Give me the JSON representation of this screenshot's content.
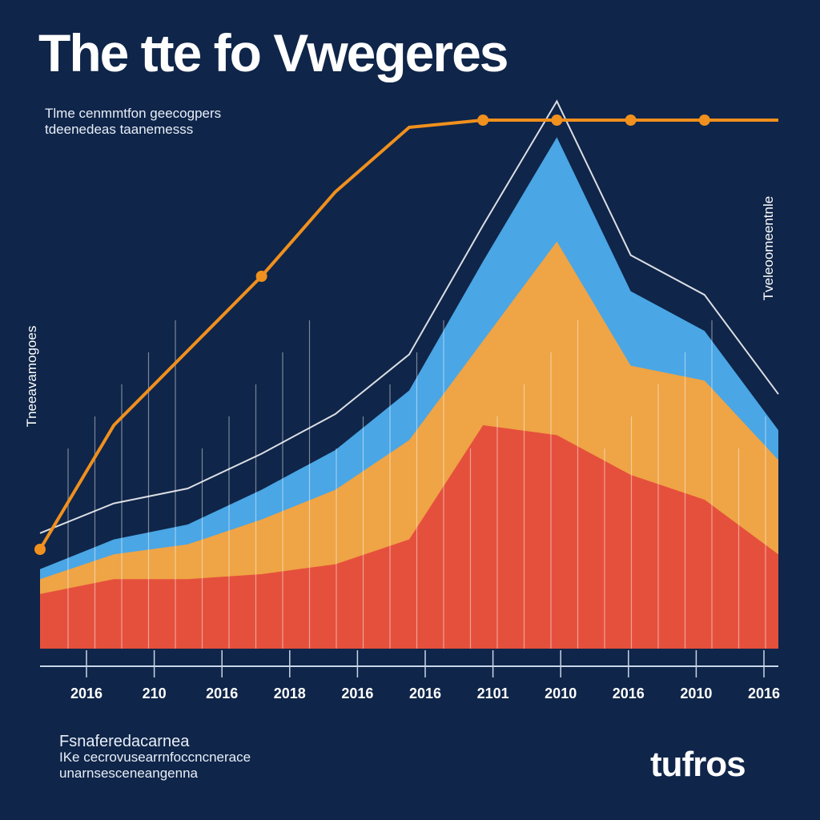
{
  "chart_data": {
    "type": "area",
    "title": "The  tte  fo Vwegeres",
    "subtitle": [
      "Tlme cenmmtfon geecogpers",
      "tdeenedeas  taanemesss"
    ],
    "ylabel": "Tneeavamogoes",
    "right_label": "Tveleoomeentnle",
    "categories": [
      "2016",
      "210",
      "2016",
      "2018",
      "2016",
      "2016",
      "2101",
      "2010",
      "2016",
      "2010",
      "2016"
    ],
    "ylim": [
      0,
      100
    ],
    "stacked": true,
    "series": [
      {
        "name": "Red",
        "color": "#e5503c",
        "values": [
          11,
          14,
          14,
          15,
          17,
          22,
          45,
          43,
          35,
          30,
          19
        ]
      },
      {
        "name": "Orange",
        "color": "#efa445",
        "values": [
          3,
          5,
          7,
          11,
          15,
          20,
          17,
          39,
          22,
          24,
          19
        ]
      },
      {
        "name": "Blue",
        "color": "#4aa6e5",
        "values": [
          2,
          3,
          4,
          6,
          8,
          10,
          16,
          21,
          15,
          10,
          6
        ]
      }
    ],
    "line_series": [
      {
        "name": "Orange line",
        "color": "#f0901e",
        "values": [
          20,
          45,
          60,
          75,
          92,
          105,
          115,
          125,
          140,
          120,
          115
        ]
      }
    ]
  },
  "footer": {
    "source_lines": [
      "Fsnaferedacarnea",
      "IKe cecrovusearrnfoccncnerace",
      "unarnsesceneangenna"
    ],
    "logo": "tufros"
  },
  "colors": {
    "background": "#0f2549",
    "axis": "#c9d6ea"
  }
}
